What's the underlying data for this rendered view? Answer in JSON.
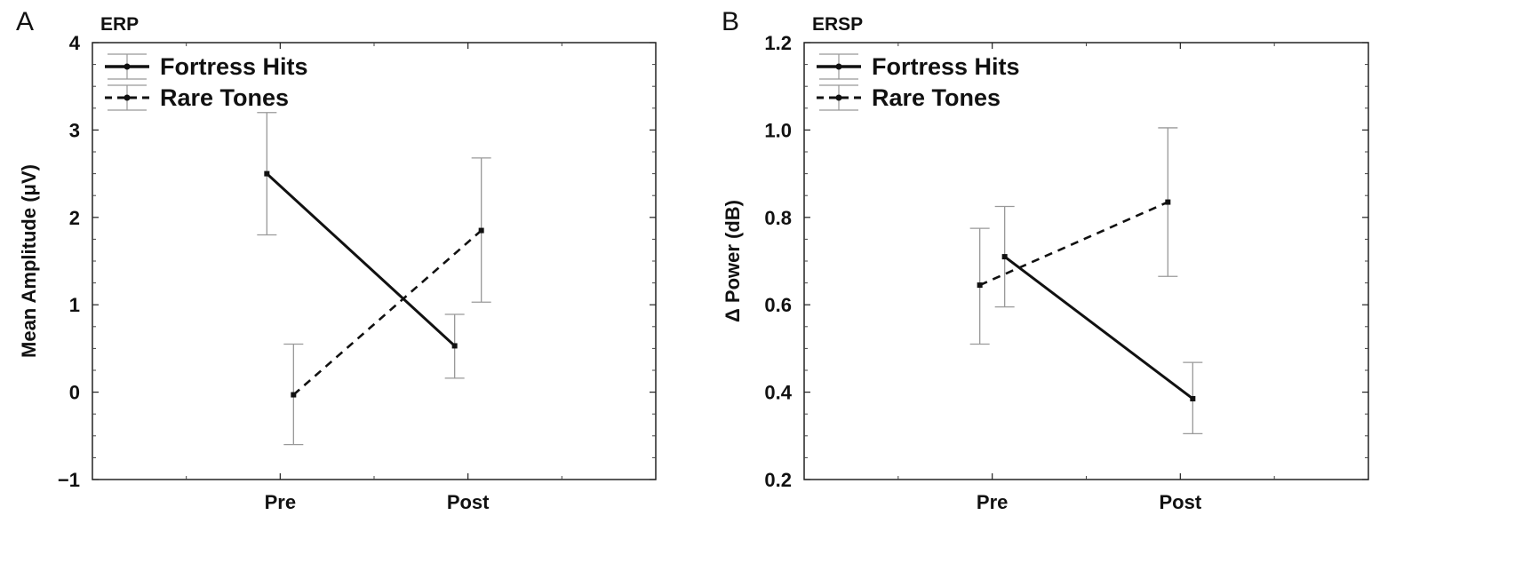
{
  "chart_data": [
    {
      "type": "line",
      "panel_label": "A",
      "title": "ERP",
      "xlabel": "",
      "ylabel": "Mean Amplitude (μV)",
      "categories": [
        "Pre",
        "Post"
      ],
      "ylim": [
        -1,
        4
      ],
      "yticks": [
        "−1",
        "0",
        "1",
        "2",
        "3",
        "4"
      ],
      "ytick_values": [
        -1,
        0,
        1,
        2,
        3,
        4
      ],
      "grid": false,
      "legend_position": "top-left",
      "series": [
        {
          "name": "Fortress Hits",
          "style": "solid",
          "values": [
            2.5,
            0.53
          ],
          "err_low": [
            1.8,
            0.16
          ],
          "err_high": [
            3.2,
            0.89
          ],
          "offset": -1
        },
        {
          "name": "Rare Tones",
          "style": "dashed",
          "values": [
            -0.03,
            1.85
          ],
          "err_low": [
            -0.6,
            1.03
          ],
          "err_high": [
            0.55,
            2.68
          ],
          "offset": 1
        }
      ]
    },
    {
      "type": "line",
      "panel_label": "B",
      "title": "ERSP",
      "xlabel": "",
      "ylabel": "Δ Power (dB)",
      "categories": [
        "Pre",
        "Post"
      ],
      "ylim": [
        0.2,
        1.2
      ],
      "yticks": [
        "0.2",
        "0.4",
        "0.6",
        "0.8",
        "1.0",
        "1.2"
      ],
      "ytick_values": [
        0.2,
        0.4,
        0.6,
        0.8,
        1.0,
        1.2
      ],
      "grid": false,
      "legend_position": "top-left",
      "series": [
        {
          "name": "Fortress Hits",
          "style": "solid",
          "values": [
            0.71,
            0.385
          ],
          "err_low": [
            0.595,
            0.305
          ],
          "err_high": [
            0.825,
            0.468
          ],
          "offset": 1
        },
        {
          "name": "Rare Tones",
          "style": "dashed",
          "values": [
            0.645,
            0.835
          ],
          "err_low": [
            0.51,
            0.665
          ],
          "err_high": [
            0.775,
            1.005
          ],
          "offset": -1
        }
      ]
    }
  ]
}
